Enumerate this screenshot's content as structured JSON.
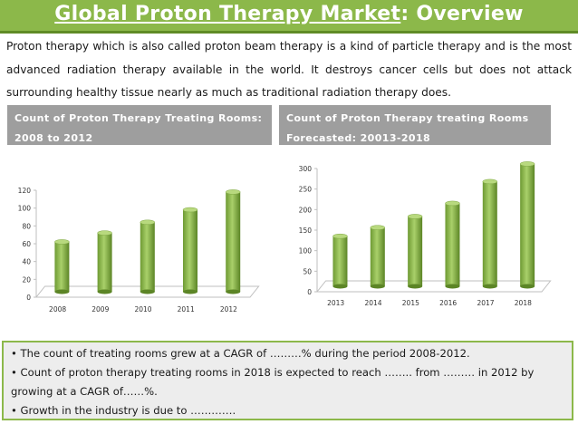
{
  "header": {
    "title_part1": "Global Proton Therapy Market",
    "title_part2": ": Overview"
  },
  "intro": "Proton therapy which is also called proton beam therapy is a kind of particle therapy and is the most advanced radiation therapy available in the world. It destroys cancer cells but does not attack surrounding healthy tissue nearly as much as traditional radiation therapy does.",
  "left_label": "Count of Proton Therapy Treating Rooms: 2008 to 2012",
  "right_label": "Count of Proton  Therapy treating Rooms Forecasted: 20013-2018",
  "chart_data": [
    {
      "type": "bar",
      "categories": [
        "2008",
        "2009",
        "2010",
        "2011",
        "2012"
      ],
      "values": [
        56,
        66,
        78,
        92,
        112
      ],
      "title": "Count of Proton Therapy Treating Rooms: 2008 to 2012",
      "ylim": [
        0,
        120
      ],
      "yticks": [
        "0",
        "20",
        "40",
        "60",
        "80",
        "100",
        "120"
      ],
      "grid": false,
      "style": "3d-cylinder",
      "color": "#8cb84a"
    },
    {
      "type": "bar",
      "categories": [
        "2013",
        "2014",
        "2015",
        "2016",
        "2017",
        "2018"
      ],
      "values": [
        122,
        143,
        170,
        202,
        255,
        298
      ],
      "title": "Count of Proton  Therapy treating Rooms Forecasted: 20013-2018",
      "ylim": [
        0,
        300
      ],
      "yticks": [
        "0",
        "50",
        "100",
        "150",
        "200",
        "250",
        "300"
      ],
      "grid": false,
      "style": "3d-cylinder",
      "color": "#8cb84a"
    }
  ],
  "summary": {
    "b1": "• The count of treating rooms  grew at a CAGR of ………% during the period 2008-2012.",
    "b2": "• Count of proton therapy treating rooms in 2018 is expected to reach …….. from  ……… in 2012 by growing at a CAGR of……%.",
    "b3": "•  Growth in the industry is due to …………."
  }
}
